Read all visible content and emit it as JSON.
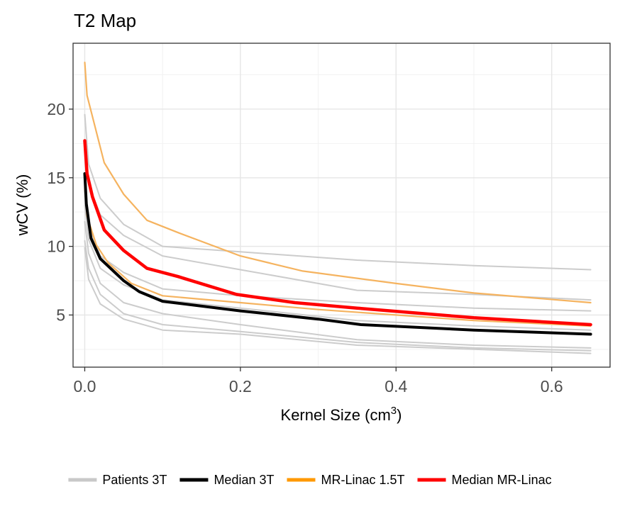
{
  "chart_data": {
    "type": "line",
    "title": "T2 Map",
    "xlabel": "Kernel Size (cm",
    "xlabel_superscript": "3",
    "xlabel_suffix": ")",
    "ylabel": "wCV (%)",
    "xlim": [
      -0.015,
      0.675
    ],
    "ylim": [
      1.2,
      24.8
    ],
    "xticks": [
      0.0,
      0.2,
      0.4,
      0.6
    ],
    "xtick_labels": [
      "0.0",
      "0.2",
      "0.4",
      "0.6"
    ],
    "yticks": [
      5,
      10,
      15,
      20
    ],
    "ytick_labels": [
      "5",
      "10",
      "15",
      "20"
    ],
    "grid": true,
    "legend_position": "bottom",
    "legend": [
      {
        "label": "Patients 3T",
        "color": "#c8c8c8"
      },
      {
        "label": "Median 3T",
        "color": "#000000"
      },
      {
        "label": "MR-Linac 1.5T",
        "color": "#ff9900"
      },
      {
        "label": "Median MR-Linac",
        "color": "#ff0000"
      }
    ],
    "series": [
      {
        "name": "Patients 3T",
        "group": "Patients 3T",
        "color": "#cccccc",
        "width": 2,
        "x": [
          0.0,
          0.005,
          0.02,
          0.05,
          0.1,
          0.2,
          0.35,
          0.5,
          0.65
        ],
        "y": [
          19.6,
          16.0,
          13.5,
          11.6,
          10.0,
          9.6,
          9.0,
          8.6,
          8.3
        ]
      },
      {
        "name": "Patients 3T",
        "group": "Patients 3T",
        "color": "#cccccc",
        "width": 2,
        "x": [
          0.0,
          0.005,
          0.02,
          0.05,
          0.1,
          0.2,
          0.35,
          0.5,
          0.65
        ],
        "y": [
          17.0,
          14.5,
          12.3,
          10.8,
          9.3,
          8.3,
          6.8,
          6.5,
          6.1
        ]
      },
      {
        "name": "Patients 3T",
        "group": "Patients 3T",
        "color": "#cccccc",
        "width": 2,
        "x": [
          0.0,
          0.005,
          0.02,
          0.05,
          0.1,
          0.2,
          0.35,
          0.5,
          0.65
        ],
        "y": [
          14.0,
          11.5,
          9.3,
          8.1,
          6.9,
          6.4,
          5.9,
          5.5,
          5.3
        ]
      },
      {
        "name": "Patients 3T",
        "group": "Patients 3T",
        "color": "#cccccc",
        "width": 2,
        "x": [
          0.0,
          0.005,
          0.02,
          0.05,
          0.1,
          0.2,
          0.35,
          0.5,
          0.65
        ],
        "y": [
          13.0,
          10.5,
          8.4,
          7.2,
          6.1,
          5.5,
          4.6,
          4.2,
          3.9
        ]
      },
      {
        "name": "Patients 3T",
        "group": "Patients 3T",
        "color": "#cccccc",
        "width": 2,
        "x": [
          0.0,
          0.005,
          0.02,
          0.05,
          0.1,
          0.2,
          0.35,
          0.5,
          0.65
        ],
        "y": [
          11.8,
          9.5,
          7.3,
          5.9,
          5.1,
          4.3,
          3.2,
          2.8,
          2.6
        ]
      },
      {
        "name": "Patients 3T",
        "group": "Patients 3T",
        "color": "#cccccc",
        "width": 2,
        "x": [
          0.0,
          0.005,
          0.02,
          0.05,
          0.1,
          0.2,
          0.35,
          0.5,
          0.65
        ],
        "y": [
          10.4,
          8.4,
          6.5,
          5.1,
          4.3,
          3.8,
          3.0,
          2.6,
          2.4
        ]
      },
      {
        "name": "Patients 3T",
        "group": "Patients 3T",
        "color": "#cccccc",
        "width": 2,
        "x": [
          0.0,
          0.005,
          0.02,
          0.05,
          0.1,
          0.2,
          0.35,
          0.5,
          0.65
        ],
        "y": [
          9.9,
          7.6,
          5.8,
          4.7,
          3.9,
          3.6,
          2.8,
          2.5,
          2.2
        ]
      },
      {
        "name": "MR-Linac 1.5T",
        "group": "MR-Linac 1.5T",
        "color": "#f5b35f",
        "width": 2.2,
        "x": [
          0.0,
          0.003,
          0.025,
          0.05,
          0.08,
          0.12,
          0.2,
          0.28,
          0.4,
          0.5,
          0.65
        ],
        "y": [
          23.4,
          21.0,
          16.1,
          13.8,
          11.9,
          11.0,
          9.3,
          8.2,
          7.3,
          6.6,
          5.9
        ]
      },
      {
        "name": "MR-Linac 1.5T",
        "group": "MR-Linac 1.5T",
        "color": "#f5b35f",
        "width": 2.2,
        "x": [
          0.0,
          0.003,
          0.015,
          0.03,
          0.06,
          0.1,
          0.2,
          0.3,
          0.4,
          0.5,
          0.65
        ],
        "y": [
          14.3,
          12.2,
          10.1,
          8.8,
          7.3,
          6.4,
          5.9,
          5.4,
          5.0,
          4.6,
          4.2
        ]
      },
      {
        "name": "Median 3T",
        "group": "Median 3T",
        "color": "#000000",
        "width": 4,
        "x": [
          0.0,
          0.002,
          0.008,
          0.02,
          0.035,
          0.05,
          0.07,
          0.1,
          0.2,
          0.3,
          0.355,
          0.5,
          0.65
        ],
        "y": [
          15.3,
          13.1,
          10.6,
          9.1,
          8.3,
          7.5,
          6.7,
          6.0,
          5.3,
          4.7,
          4.3,
          3.9,
          3.6
        ]
      },
      {
        "name": "Median MR-Linac",
        "group": "Median MR-Linac",
        "color": "#ff0000",
        "width": 4.5,
        "x": [
          0.0,
          0.003,
          0.01,
          0.025,
          0.05,
          0.08,
          0.12,
          0.195,
          0.27,
          0.35,
          0.5,
          0.65
        ],
        "y": [
          17.7,
          15.3,
          13.6,
          11.2,
          9.7,
          8.4,
          7.8,
          6.5,
          5.9,
          5.5,
          4.8,
          4.3
        ]
      }
    ]
  }
}
